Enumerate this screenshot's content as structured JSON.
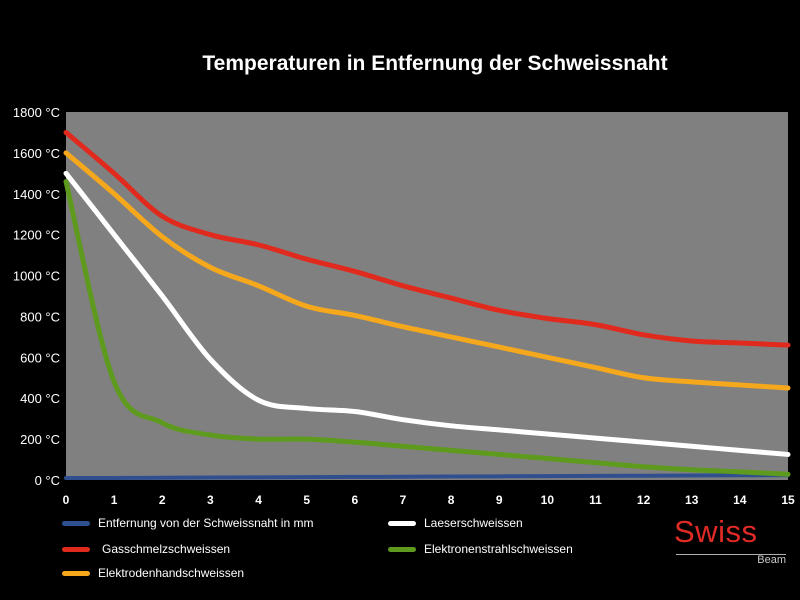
{
  "chart_data": {
    "type": "line",
    "title": "Temperaturen in Entfernung der Schweissnaht",
    "xlabel": "",
    "ylabel": "",
    "x": [
      0,
      1,
      2,
      3,
      4,
      5,
      6,
      7,
      8,
      9,
      10,
      11,
      12,
      13,
      14,
      15
    ],
    "xlim": [
      0,
      15
    ],
    "ylim": [
      0,
      1800
    ],
    "y_ticks": [
      "0 °C",
      "200 °C",
      "400 °C",
      "600 °C",
      "800 °C",
      "1000 °C",
      "1200 °C",
      "1400 °C",
      "1600 °C",
      "1800 °C"
    ],
    "x_ticks": [
      "0",
      "1",
      "2",
      "3",
      "4",
      "5",
      "6",
      "7",
      "8",
      "9",
      "10",
      "11",
      "12",
      "13",
      "14",
      "15"
    ],
    "grid": false,
    "legend_position": "bottom",
    "series": [
      {
        "name": "Entfernung von der Schweissnaht in mm",
        "color": "#2f4f8f",
        "values": [
          10,
          10,
          11,
          12,
          13,
          14,
          15,
          16,
          17,
          18,
          19,
          20,
          21,
          22,
          23,
          24
        ]
      },
      {
        "name": "Laeserschweissen",
        "color": "#ffffff",
        "values": [
          1500,
          1200,
          900,
          590,
          390,
          350,
          335,
          295,
          265,
          245,
          225,
          205,
          185,
          165,
          145,
          125
        ]
      },
      {
        "name": "Gasschmelzschweissen",
        "color": "#e02a1e",
        "values": [
          1700,
          1500,
          1290,
          1200,
          1150,
          1080,
          1020,
          950,
          890,
          830,
          790,
          760,
          710,
          680,
          670,
          660
        ]
      },
      {
        "name": "Elektronenstrahlschweissen",
        "color": "#5e9a1e",
        "values": [
          1460,
          480,
          280,
          220,
          200,
          200,
          185,
          165,
          145,
          125,
          105,
          85,
          65,
          50,
          40,
          28
        ]
      },
      {
        "name": "Elektrodenhandschweissen",
        "color": "#f5a81c",
        "values": [
          1600,
          1400,
          1190,
          1040,
          950,
          850,
          805,
          750,
          700,
          650,
          600,
          550,
          500,
          480,
          465,
          450
        ]
      }
    ]
  },
  "legend_layout": [
    {
      "series": 0
    },
    {
      "series": 1
    },
    {
      "series": 2
    },
    {
      "series": 3
    },
    {
      "series": 4
    }
  ],
  "logo": {
    "brand": "Swiss",
    "sub": "Beam"
  }
}
